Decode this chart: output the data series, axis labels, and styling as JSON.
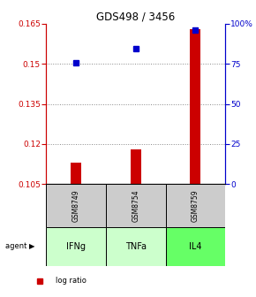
{
  "title": "GDS498 / 3456",
  "samples": [
    "GSM8749",
    "GSM8754",
    "GSM8759"
  ],
  "agents": [
    "IFNg",
    "TNFa",
    "IL4"
  ],
  "log_ratio": [
    0.113,
    0.118,
    0.163
  ],
  "percentile_rank": [
    0.755,
    0.845,
    0.96
  ],
  "baseline": 0.105,
  "ylim_left": [
    0.105,
    0.165
  ],
  "ylim_right": [
    0.0,
    1.0
  ],
  "yticks_left": [
    0.105,
    0.12,
    0.135,
    0.15,
    0.165
  ],
  "yticks_right": [
    0.0,
    0.25,
    0.5,
    0.75,
    1.0
  ],
  "ytick_labels_right": [
    "0",
    "25",
    "50",
    "75",
    "100%"
  ],
  "ytick_labels_left": [
    "0.105",
    "0.12",
    "0.135",
    "0.15",
    "0.165"
  ],
  "bar_color": "#cc0000",
  "dot_color": "#0000cc",
  "agent_colors": [
    "#ccffcc",
    "#ccffcc",
    "#66ff66"
  ],
  "sample_box_color": "#cccccc",
  "grid_color": "#888888",
  "left_axis_color": "#cc0000",
  "right_axis_color": "#0000cc",
  "bar_width": 0.18
}
